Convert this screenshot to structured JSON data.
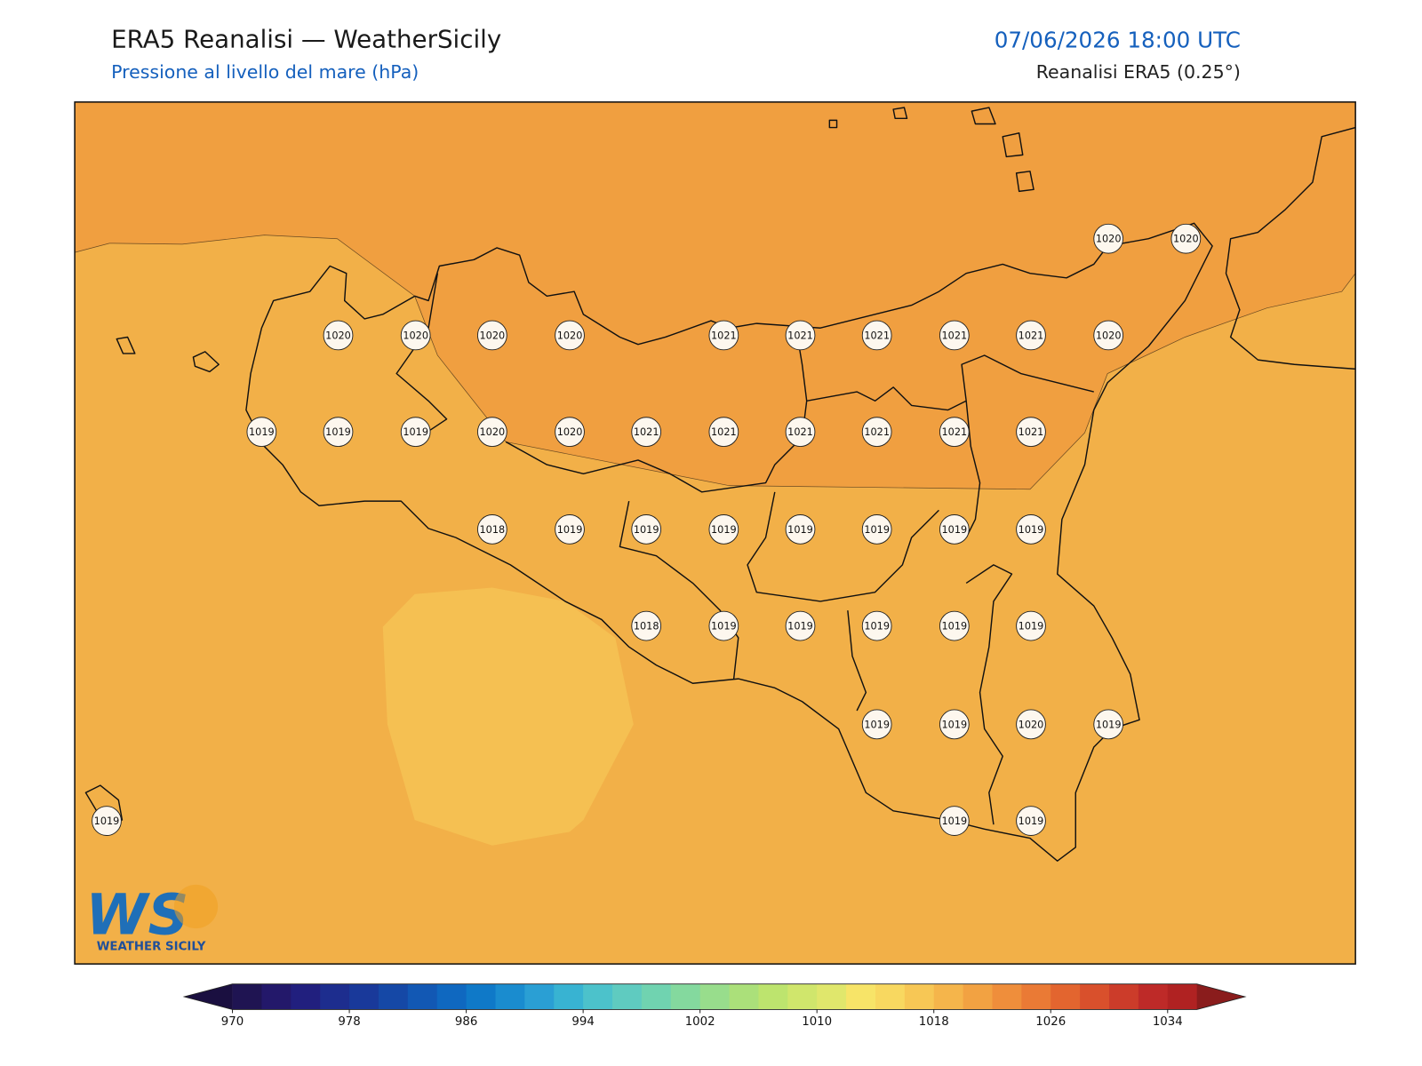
{
  "header": {
    "title": "ERA5 Reanalisi — WeatherSicily",
    "subtitle": "Pressione al livello del mare (hPa)",
    "datetime": "07/06/2026 18:00 UTC",
    "source": "Reanalisi ERA5 (0.25°)"
  },
  "map": {
    "pressure_labels": [
      1020,
      1020,
      1020,
      1020,
      1020,
      1020,
      1021,
      1021,
      1021,
      1021,
      1021,
      1020,
      1019,
      1019,
      1019,
      1020,
      1020,
      1021,
      1021,
      1021,
      1021,
      1021,
      1021,
      1018,
      1019,
      1019,
      1019,
      1019,
      1019,
      1019,
      1019,
      1018,
      1019,
      1019,
      1019,
      1019,
      1019,
      1019,
      1019,
      1020,
      1019,
      1019,
      1019,
      1019
    ]
  },
  "logo": {
    "letters": "WS",
    "name": "WEATHER SICILY"
  },
  "colorbar": {
    "lim": [
      970,
      1036
    ],
    "ticks": [
      970,
      978,
      986,
      994,
      1002,
      1010,
      1018,
      1026,
      1034
    ],
    "under_color": "#1a0f40",
    "over_color": "#8a1c1c",
    "colors": [
      "#1f1452",
      "#23186a",
      "#211f7e",
      "#1d2d8e",
      "#19399a",
      "#1548a6",
      "#1258b4",
      "#0f68c0",
      "#0f79c8",
      "#1a8ccf",
      "#2a9fd4",
      "#38b3d2",
      "#4cc2cb",
      "#5fcbc0",
      "#70d3b0",
      "#84d99e",
      "#98dd8c",
      "#abe07a",
      "#bde46e",
      "#d0e66c",
      "#e0e76c",
      "#f7e468",
      "#f8d860",
      "#f7c755",
      "#f5b54b",
      "#f2a242",
      "#ef8e3b",
      "#ea7a35",
      "#e3652f",
      "#d9502c",
      "#cc3c2a",
      "#be2a28",
      "#b02222"
    ]
  }
}
